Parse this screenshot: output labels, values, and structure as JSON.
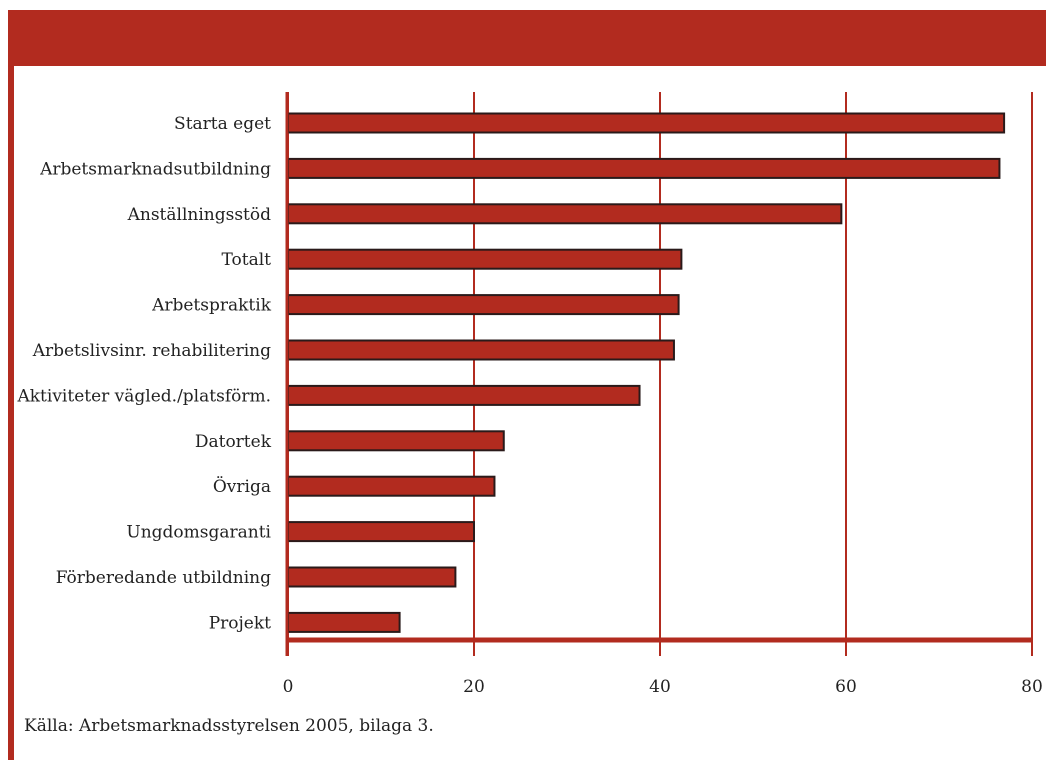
{
  "colors": {
    "accent": "#b22b1f",
    "bar_stroke": "#2a1a1a",
    "text": "#222222"
  },
  "source": "Källa: Arbetsmarknadsstyrelsen 2005, bilaga 3.",
  "chart_data": {
    "type": "bar",
    "orientation": "horizontal",
    "title": "",
    "xlabel": "",
    "ylabel": "",
    "categories": [
      "Starta eget",
      "Arbetsmarknadsutbildning",
      "Anställningsstöd",
      "Totalt",
      "Arbetspraktik",
      "Arbetslivsinr. rehabilitering",
      "Aktiviteter vägled./platsförm.",
      "Datortek",
      "Övriga",
      "Ungdomsgaranti",
      "Förberedande utbildning",
      "Projekt"
    ],
    "values": [
      77,
      76.5,
      59.5,
      42.3,
      42,
      41.5,
      37.8,
      23.2,
      22.2,
      20,
      18,
      12
    ],
    "xlim": [
      0,
      80
    ],
    "xticks": [
      0,
      20,
      40,
      60,
      80
    ],
    "grid": "vertical"
  }
}
